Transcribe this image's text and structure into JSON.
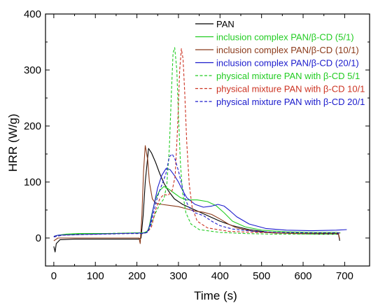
{
  "chart_data": {
    "type": "line",
    "xlabel": "Time (s)",
    "ylabel": "HRR (W/g)",
    "xlim": [
      -20,
      760
    ],
    "ylim": [
      -50,
      400
    ],
    "xticks": [
      0,
      100,
      200,
      300,
      400,
      500,
      600,
      700
    ],
    "yticks": [
      0,
      100,
      200,
      300,
      400
    ],
    "grid": false,
    "legend_position": "top-right",
    "series": [
      {
        "name": "PAN",
        "color": "#000000",
        "dash": "solid",
        "points": [
          [
            0,
            -15
          ],
          [
            3,
            -25
          ],
          [
            6,
            -10
          ],
          [
            15,
            -3
          ],
          [
            50,
            -2
          ],
          [
            100,
            -2
          ],
          [
            150,
            -2
          ],
          [
            205,
            -2
          ],
          [
            210,
            0
          ],
          [
            215,
            40
          ],
          [
            220,
            100
          ],
          [
            228,
            160
          ],
          [
            235,
            152
          ],
          [
            245,
            135
          ],
          [
            255,
            115
          ],
          [
            265,
            98
          ],
          [
            275,
            85
          ],
          [
            290,
            70
          ],
          [
            310,
            60
          ],
          [
            340,
            50
          ],
          [
            370,
            40
          ],
          [
            400,
            30
          ],
          [
            430,
            22
          ],
          [
            470,
            15
          ],
          [
            520,
            10
          ],
          [
            580,
            8
          ],
          [
            640,
            7
          ],
          [
            685,
            7
          ],
          [
            688,
            -5
          ]
        ]
      },
      {
        "name": "inclusion complex PAN/β-CD (5/1)",
        "color": "#22cc22",
        "dash": "solid",
        "points": [
          [
            0,
            3
          ],
          [
            10,
            5
          ],
          [
            30,
            7
          ],
          [
            60,
            8
          ],
          [
            100,
            8
          ],
          [
            150,
            8
          ],
          [
            200,
            9
          ],
          [
            210,
            9
          ],
          [
            220,
            9
          ],
          [
            228,
            15
          ],
          [
            235,
            40
          ],
          [
            245,
            70
          ],
          [
            255,
            85
          ],
          [
            265,
            92
          ],
          [
            275,
            88
          ],
          [
            290,
            80
          ],
          [
            305,
            72
          ],
          [
            320,
            68
          ],
          [
            345,
            68
          ],
          [
            370,
            65
          ],
          [
            390,
            58
          ],
          [
            410,
            45
          ],
          [
            430,
            30
          ],
          [
            460,
            20
          ],
          [
            500,
            14
          ],
          [
            560,
            11
          ],
          [
            620,
            10
          ],
          [
            680,
            10
          ],
          [
            690,
            9
          ]
        ]
      },
      {
        "name": "inclusion complex PAN/β-CD (10/1)",
        "color": "#8b3a1a",
        "dash": "solid",
        "points": [
          [
            0,
            -5
          ],
          [
            10,
            0
          ],
          [
            30,
            0
          ],
          [
            100,
            0
          ],
          [
            150,
            0
          ],
          [
            205,
            0
          ],
          [
            208,
            -10
          ],
          [
            212,
            40
          ],
          [
            216,
            120
          ],
          [
            220,
            165
          ],
          [
            226,
            140
          ],
          [
            230,
            100
          ],
          [
            237,
            70
          ],
          [
            245,
            62
          ],
          [
            260,
            60
          ],
          [
            280,
            58
          ],
          [
            300,
            56
          ],
          [
            320,
            52
          ],
          [
            340,
            48
          ],
          [
            360,
            46
          ],
          [
            380,
            42
          ],
          [
            400,
            34
          ],
          [
            420,
            25
          ],
          [
            440,
            18
          ],
          [
            480,
            12
          ],
          [
            530,
            9
          ],
          [
            590,
            8
          ],
          [
            650,
            8
          ],
          [
            685,
            8
          ],
          [
            688,
            -2
          ]
        ]
      },
      {
        "name": "inclusion complex PAN/β-CD (20/1)",
        "color": "#1a1acc",
        "dash": "solid",
        "points": [
          [
            0,
            3
          ],
          [
            10,
            5
          ],
          [
            50,
            6
          ],
          [
            100,
            7
          ],
          [
            150,
            8
          ],
          [
            200,
            9
          ],
          [
            215,
            9
          ],
          [
            225,
            11
          ],
          [
            232,
            25
          ],
          [
            240,
            55
          ],
          [
            250,
            90
          ],
          [
            260,
            112
          ],
          [
            270,
            124
          ],
          [
            280,
            122
          ],
          [
            290,
            112
          ],
          [
            300,
            100
          ],
          [
            310,
            85
          ],
          [
            320,
            72
          ],
          [
            340,
            60
          ],
          [
            360,
            55
          ],
          [
            380,
            57
          ],
          [
            395,
            60
          ],
          [
            410,
            57
          ],
          [
            425,
            48
          ],
          [
            440,
            38
          ],
          [
            470,
            25
          ],
          [
            510,
            17
          ],
          [
            560,
            14
          ],
          [
            620,
            13
          ],
          [
            680,
            14
          ],
          [
            705,
            15
          ]
        ]
      },
      {
        "name": "physical mixture PAN with β-CD 5/1",
        "color": "#22cc22",
        "dash": "dashed",
        "points": [
          [
            0,
            2
          ],
          [
            20,
            5
          ],
          [
            60,
            7
          ],
          [
            120,
            8
          ],
          [
            180,
            9
          ],
          [
            215,
            9
          ],
          [
            225,
            12
          ],
          [
            235,
            25
          ],
          [
            245,
            45
          ],
          [
            255,
            60
          ],
          [
            265,
            70
          ],
          [
            272,
            95
          ],
          [
            278,
            160
          ],
          [
            283,
            260
          ],
          [
            287,
            330
          ],
          [
            291,
            340
          ],
          [
            296,
            300
          ],
          [
            300,
            220
          ],
          [
            305,
            130
          ],
          [
            310,
            80
          ],
          [
            318,
            45
          ],
          [
            330,
            25
          ],
          [
            350,
            15
          ],
          [
            400,
            10
          ],
          [
            460,
            8
          ],
          [
            520,
            7
          ],
          [
            600,
            7
          ],
          [
            680,
            7
          ]
        ]
      },
      {
        "name": "physical mixture PAN with β-CD 10/1",
        "color": "#cc3322",
        "dash": "dashed",
        "points": [
          [
            0,
            2
          ],
          [
            20,
            5
          ],
          [
            60,
            6
          ],
          [
            120,
            7
          ],
          [
            180,
            8
          ],
          [
            215,
            8
          ],
          [
            225,
            10
          ],
          [
            235,
            20
          ],
          [
            245,
            50
          ],
          [
            255,
            70
          ],
          [
            265,
            78
          ],
          [
            275,
            76
          ],
          [
            285,
            85
          ],
          [
            292,
            110
          ],
          [
            298,
            200
          ],
          [
            303,
            300
          ],
          [
            307,
            338
          ],
          [
            311,
            320
          ],
          [
            315,
            260
          ],
          [
            320,
            170
          ],
          [
            326,
            95
          ],
          [
            333,
            55
          ],
          [
            345,
            30
          ],
          [
            370,
            18
          ],
          [
            420,
            12
          ],
          [
            480,
            10
          ],
          [
            560,
            9
          ],
          [
            630,
            9
          ],
          [
            690,
            9
          ]
        ]
      },
      {
        "name": "physical mixture PAN with β-CD 20/1",
        "color": "#1a1acc",
        "dash": "dashed",
        "points": [
          [
            0,
            2
          ],
          [
            20,
            5
          ],
          [
            60,
            6
          ],
          [
            120,
            7
          ],
          [
            180,
            8
          ],
          [
            215,
            8
          ],
          [
            225,
            10
          ],
          [
            232,
            20
          ],
          [
            240,
            45
          ],
          [
            250,
            75
          ],
          [
            260,
            95
          ],
          [
            270,
            115
          ],
          [
            278,
            145
          ],
          [
            285,
            150
          ],
          [
            292,
            140
          ],
          [
            300,
            120
          ],
          [
            308,
            95
          ],
          [
            316,
            70
          ],
          [
            325,
            55
          ],
          [
            340,
            45
          ],
          [
            360,
            40
          ],
          [
            380,
            30
          ],
          [
            400,
            22
          ],
          [
            430,
            16
          ],
          [
            480,
            12
          ],
          [
            540,
            10
          ],
          [
            620,
            9
          ],
          [
            690,
            9
          ]
        ]
      }
    ]
  }
}
